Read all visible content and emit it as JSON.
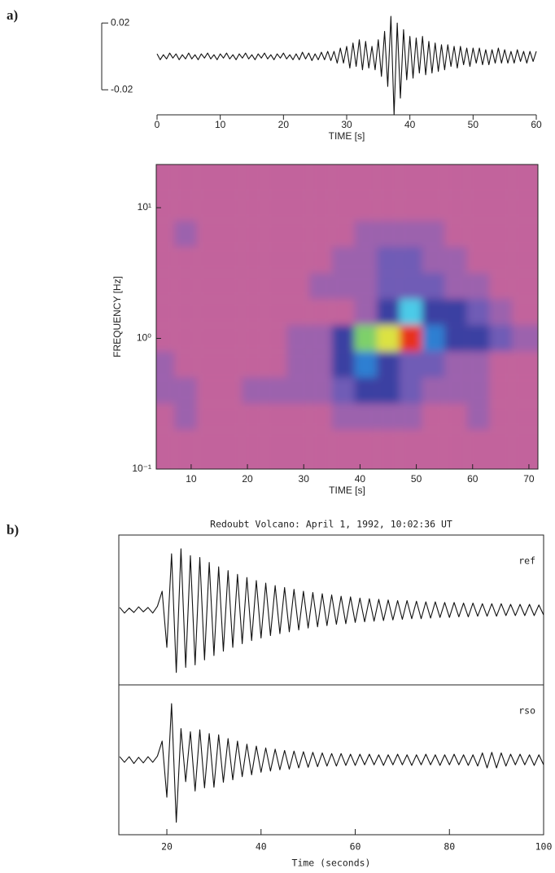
{
  "chart_data": [
    {
      "type": "line",
      "panel_label": "a)",
      "xlabel": "TIME [s]",
      "color": "#111111",
      "xlim": [
        0,
        60
      ],
      "xticks": [
        0,
        10,
        20,
        30,
        40,
        50,
        60
      ],
      "ylim": [
        -0.035,
        0.025
      ],
      "yticks": [
        {
          "value": 0.02,
          "label": "0.02"
        },
        {
          "value": -0.02,
          "label": "-0.02"
        }
      ],
      "x": [
        0,
        0.5,
        1,
        1.5,
        2,
        2.5,
        3,
        3.5,
        4,
        4.5,
        5,
        5.5,
        6,
        6.5,
        7,
        7.5,
        8,
        8.5,
        9,
        9.5,
        10,
        10.5,
        11,
        11.5,
        12,
        12.5,
        13,
        13.5,
        14,
        14.5,
        15,
        15.5,
        16,
        16.5,
        17,
        17.5,
        18,
        18.5,
        19,
        19.5,
        20,
        20.5,
        21,
        21.5,
        22,
        22.5,
        23,
        23.5,
        24,
        24.5,
        25,
        25.5,
        26,
        26.5,
        27,
        27.5,
        28,
        28.5,
        29,
        29.5,
        30,
        30.5,
        31,
        31.5,
        32,
        32.5,
        33,
        33.5,
        34,
        34.5,
        35,
        35.5,
        36,
        36.5,
        37,
        37.5,
        38,
        38.5,
        39,
        39.5,
        40,
        40.5,
        41,
        41.5,
        42,
        42.5,
        43,
        43.5,
        44,
        44.5,
        45,
        45.5,
        46,
        46.5,
        47,
        47.5,
        48,
        48.5,
        49,
        49.5,
        50,
        50.5,
        51,
        51.5,
        52,
        52.5,
        53,
        53.5,
        54,
        54.5,
        55,
        55.5,
        56,
        56.5,
        57,
        57.5,
        58,
        58.5,
        59,
        59.5,
        60
      ],
      "values": [
        0.0015,
        -0.002,
        0.001,
        -0.0015,
        0.002,
        -0.001,
        0.0015,
        -0.002,
        0.001,
        -0.0015,
        0.002,
        -0.0015,
        0.001,
        -0.002,
        0.0015,
        -0.001,
        0.002,
        -0.0015,
        0.001,
        -0.002,
        0.0015,
        -0.001,
        0.002,
        -0.0015,
        0.001,
        -0.002,
        0.0015,
        -0.001,
        0.002,
        -0.0015,
        0.001,
        -0.002,
        0.0015,
        -0.001,
        0.002,
        -0.0015,
        0.001,
        -0.002,
        0.0015,
        -0.001,
        0.002,
        -0.0015,
        0.001,
        -0.002,
        0.0015,
        -0.002,
        0.0025,
        -0.0015,
        0.002,
        -0.0025,
        0.0015,
        -0.002,
        0.0025,
        -0.002,
        0.003,
        -0.0025,
        0.003,
        -0.004,
        0.005,
        -0.004,
        0.006,
        -0.007,
        0.008,
        -0.006,
        0.01,
        -0.008,
        0.009,
        -0.007,
        0.006,
        -0.008,
        0.01,
        -0.012,
        0.015,
        -0.018,
        0.024,
        -0.035,
        0.02,
        -0.025,
        0.016,
        -0.014,
        0.012,
        -0.013,
        0.011,
        -0.01,
        0.012,
        -0.011,
        0.009,
        -0.01,
        0.008,
        -0.009,
        0.007,
        -0.008,
        0.007,
        -0.006,
        0.006,
        -0.007,
        0.006,
        -0.005,
        0.005,
        -0.006,
        0.005,
        -0.004,
        0.005,
        -0.005,
        0.004,
        -0.005,
        0.004,
        -0.004,
        0.005,
        -0.004,
        0.004,
        -0.004,
        0.003,
        -0.004,
        0.004,
        -0.003,
        0.003,
        -0.004,
        0.003,
        -0.003,
        0.003
      ]
    },
    {
      "type": "contour",
      "xlabel": "TIME [s]",
      "ylabel": "FREQUENCY [Hz]",
      "log_y": true,
      "xlim": [
        3.8,
        71.6
      ],
      "xticks": [
        10,
        20,
        30,
        40,
        50,
        60,
        70
      ],
      "ylim": [
        0.1,
        21.4
      ],
      "yticks": [
        {
          "value": 10,
          "label": "10¹"
        },
        {
          "value": 1,
          "label": "10⁰"
        },
        {
          "value": 0.1,
          "label": "10⁻¹"
        }
      ],
      "colors": [
        "#c2639c",
        "#9c62ad",
        "#6f5cb6",
        "#3a3fa2",
        "#2f7fd2",
        "#4ccbe8",
        "#7ed06a",
        "#dce243",
        "#e8301f"
      ],
      "x": [
        5,
        9,
        13,
        17,
        21,
        25,
        29,
        33,
        37,
        41,
        45,
        49,
        53,
        57,
        61,
        65,
        69
      ],
      "y": [
        15.8,
        10,
        6.3,
        4,
        2.5,
        1.6,
        1,
        0.63,
        0.4,
        0.25,
        0.16
      ],
      "z": [
        [
          0,
          0,
          0,
          0,
          0,
          0,
          0,
          0,
          0,
          0,
          0,
          0,
          0,
          0,
          0,
          0,
          0
        ],
        [
          0,
          0,
          0,
          0,
          0,
          0,
          0,
          0,
          0,
          0,
          0,
          0,
          0,
          0,
          0,
          0,
          0
        ],
        [
          0,
          1,
          0,
          0,
          0,
          0,
          0,
          0,
          0,
          1,
          1,
          1,
          1,
          0,
          0,
          0,
          0
        ],
        [
          0,
          0,
          0,
          0,
          0,
          0,
          0,
          0,
          1,
          1,
          2,
          2,
          1,
          1,
          0,
          0,
          0
        ],
        [
          0,
          0,
          0,
          0,
          0,
          0,
          0,
          1,
          1,
          1,
          2,
          2,
          2,
          1,
          1,
          0,
          0
        ],
        [
          0,
          0,
          0,
          0,
          0,
          0,
          0,
          0,
          0,
          1,
          3,
          5,
          3,
          3,
          2,
          1,
          0
        ],
        [
          0,
          0,
          0,
          0,
          0,
          0,
          1,
          1,
          3,
          6,
          7,
          8,
          4,
          3,
          3,
          2,
          1
        ],
        [
          1,
          0,
          0,
          0,
          0,
          0,
          1,
          1,
          3,
          4,
          3,
          2,
          2,
          1,
          1,
          0,
          0
        ],
        [
          1,
          1,
          0,
          0,
          1,
          1,
          1,
          1,
          2,
          3,
          3,
          2,
          1,
          1,
          1,
          0,
          0
        ],
        [
          0,
          1,
          0,
          0,
          0,
          0,
          0,
          0,
          1,
          1,
          1,
          1,
          0,
          0,
          1,
          0,
          0
        ],
        [
          0,
          0,
          0,
          0,
          0,
          0,
          0,
          0,
          0,
          0,
          0,
          0,
          0,
          0,
          0,
          0,
          0
        ]
      ]
    },
    {
      "type": "line",
      "panel_label": "b)",
      "title": "Redoubt Volcano: April 1, 1992, 10:02:36 UT",
      "xlabel": "Time (seconds)",
      "subplots": true,
      "color": "#111111",
      "xlim": [
        9.8,
        100
      ],
      "xticks": [
        20,
        40,
        60,
        80,
        100
      ],
      "ylim": [
        -1.2,
        1.2
      ],
      "x": [
        10,
        11,
        12,
        13,
        14,
        15,
        16,
        17,
        18,
        19,
        20,
        21,
        22,
        23,
        24,
        25,
        26,
        27,
        28,
        29,
        30,
        31,
        32,
        33,
        34,
        35,
        36,
        37,
        38,
        39,
        40,
        41,
        42,
        43,
        44,
        45,
        46,
        47,
        48,
        49,
        50,
        51,
        52,
        53,
        54,
        55,
        56,
        57,
        58,
        59,
        60,
        61,
        62,
        63,
        64,
        65,
        66,
        67,
        68,
        69,
        70,
        71,
        72,
        73,
        74,
        75,
        76,
        77,
        78,
        79,
        80,
        81,
        82,
        83,
        84,
        85,
        86,
        87,
        88,
        89,
        90,
        91,
        92,
        93,
        94,
        95,
        96,
        97,
        98,
        99,
        100
      ],
      "series": [
        {
          "name": "ref",
          "values": [
            0.04,
            -0.05,
            0.03,
            -0.04,
            0.05,
            -0.03,
            0.04,
            -0.05,
            0.06,
            0.3,
            -0.6,
            0.9,
            -1.0,
            0.98,
            -0.92,
            0.87,
            -0.88,
            0.84,
            -0.8,
            0.76,
            -0.73,
            0.69,
            -0.66,
            0.63,
            -0.6,
            0.57,
            -0.54,
            0.52,
            -0.49,
            0.47,
            -0.45,
            0.43,
            -0.41,
            0.39,
            -0.38,
            0.36,
            -0.35,
            0.33,
            -0.32,
            0.3,
            -0.29,
            0.28,
            -0.27,
            0.26,
            -0.25,
            0.24,
            -0.23,
            0.22,
            -0.22,
            0.21,
            -0.2,
            0.19,
            -0.19,
            0.18,
            -0.18,
            0.17,
            -0.17,
            0.16,
            -0.16,
            0.15,
            -0.15,
            0.15,
            -0.14,
            0.14,
            -0.14,
            0.13,
            -0.13,
            0.13,
            -0.12,
            0.12,
            -0.12,
            0.12,
            -0.11,
            0.11,
            -0.11,
            0.11,
            -0.1,
            0.1,
            -0.1,
            0.1,
            -0.1,
            0.1,
            -0.09,
            0.09,
            -0.09,
            0.09,
            -0.09,
            0.09,
            -0.09,
            0.08,
            -0.08
          ]
        },
        {
          "name": "rso",
          "values": [
            0.05,
            -0.04,
            0.05,
            -0.06,
            0.04,
            -0.05,
            0.05,
            -0.04,
            0.06,
            0.3,
            -0.6,
            0.9,
            -1.0,
            0.5,
            -0.35,
            0.45,
            -0.5,
            0.48,
            -0.45,
            0.42,
            -0.44,
            0.4,
            -0.36,
            0.34,
            -0.32,
            0.3,
            -0.27,
            0.25,
            -0.24,
            0.22,
            -0.2,
            0.19,
            -0.18,
            0.17,
            -0.16,
            0.15,
            -0.15,
            0.14,
            -0.13,
            0.13,
            -0.12,
            0.12,
            -0.11,
            0.11,
            -0.1,
            0.1,
            -0.1,
            0.1,
            -0.09,
            0.09,
            -0.09,
            0.09,
            -0.08,
            0.09,
            -0.08,
            0.08,
            -0.09,
            0.08,
            -0.08,
            0.09,
            -0.08,
            0.08,
            -0.09,
            0.08,
            -0.08,
            0.09,
            -0.08,
            0.08,
            -0.09,
            0.08,
            -0.08,
            0.09,
            -0.08,
            0.08,
            -0.09,
            0.08,
            -0.1,
            0.11,
            -0.13,
            0.12,
            -0.13,
            0.11,
            -0.1,
            0.09,
            -0.08,
            0.09,
            -0.08,
            0.08,
            -0.09,
            0.08,
            -0.08
          ]
        }
      ]
    }
  ]
}
